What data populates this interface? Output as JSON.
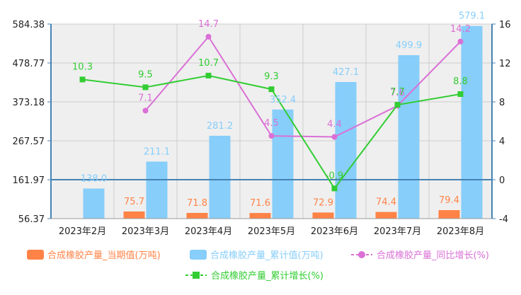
{
  "chart_data": {
    "type": "bar",
    "categories": [
      "2023年2月",
      "2023年3月",
      "2023年4月",
      "2023年5月",
      "2023年6月",
      "2023年7月",
      "2023年8月"
    ],
    "series": [
      {
        "name": "合成橡胶产量_当期值(万吨)",
        "type": "bar",
        "axis": "left",
        "color": "#ff8347",
        "values": [
          null,
          75.7,
          71.8,
          71.6,
          72.9,
          74.4,
          79.4
        ],
        "labels": [
          "",
          "75.7",
          "71.8",
          "71.6",
          "72.9",
          "74.4",
          "79.4"
        ]
      },
      {
        "name": "合成橡胶产量_累计值(万吨)",
        "type": "bar",
        "axis": "left",
        "color": "#87cefa",
        "values": [
          138.0,
          211.1,
          281.2,
          352.4,
          427.1,
          499.9,
          579.1
        ],
        "labels": [
          "138.0",
          "211.1",
          "281.2",
          "352.4",
          "427.1",
          "499.9",
          "579.1"
        ]
      },
      {
        "name": "合成橡胶产量_同比增长(%)",
        "type": "line",
        "axis": "right",
        "color": "#da70d6",
        "values": [
          null,
          7.1,
          14.7,
          4.5,
          4.4,
          7.6,
          14.2
        ],
        "labels": [
          "",
          "7.1",
          "14.7",
          "4.5",
          "4.4",
          "7.6",
          "14.2"
        ]
      },
      {
        "name": "合成橡胶产量_累计增长(%)",
        "type": "line",
        "axis": "right",
        "color": "#32cd32",
        "values": [
          10.3,
          9.5,
          10.7,
          9.3,
          -0.9,
          7.7,
          8.8
        ],
        "labels": [
          "10.3",
          "9.5",
          "10.7",
          "9.3",
          "-0.9",
          "7.7",
          "8.8"
        ]
      }
    ],
    "left_axis": {
      "ticks": [
        "584.38",
        "478.77",
        "373.18",
        "267.57",
        "161.97",
        "56.37"
      ],
      "ylim": [
        56.37,
        584.38
      ]
    },
    "right_axis": {
      "ticks": [
        "16",
        "12",
        "8",
        "4",
        "0",
        "-4"
      ],
      "ylim": [
        -4,
        16
      ]
    },
    "grid": true,
    "legend_position": "bottom"
  }
}
